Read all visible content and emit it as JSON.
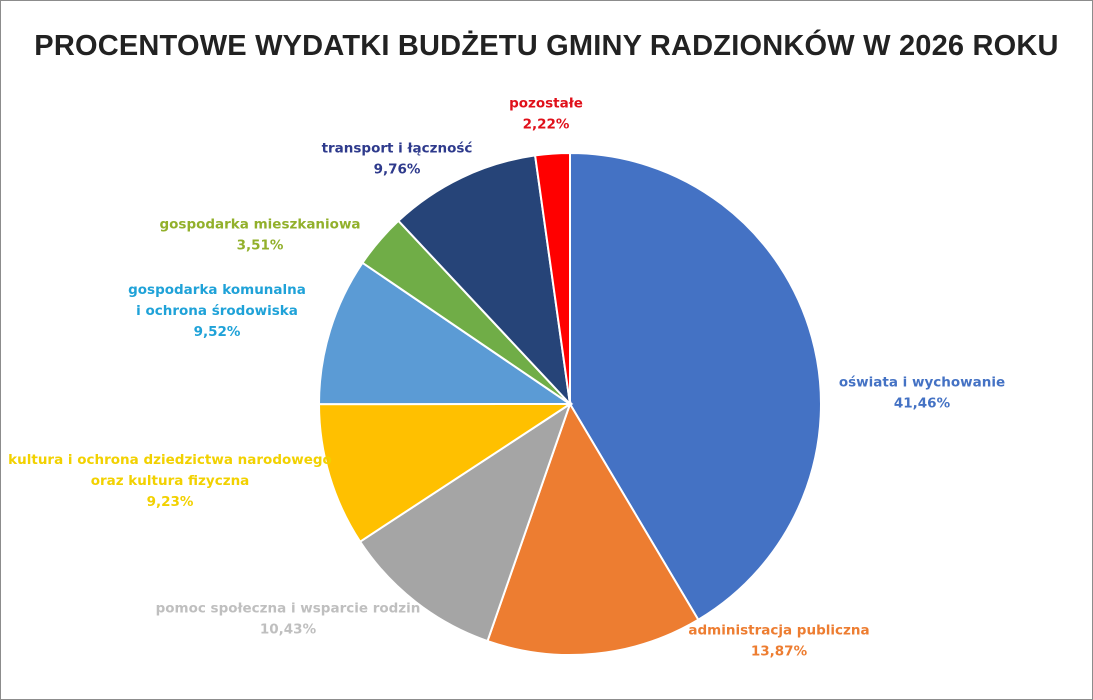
{
  "chart_data": {
    "type": "pie",
    "title": "PROCENTOWE WYDATKI BUDŻETU GMINY RADZIONKÓW W 2026 ROKU",
    "slices": [
      {
        "label_lines": [
          "oświata i wychowanie"
        ],
        "value": 41.46,
        "value_label": "41,46%",
        "color": "#4472C4",
        "label_color": "#4472C4"
      },
      {
        "label_lines": [
          "administracja publiczna"
        ],
        "value": 13.87,
        "value_label": "13,87%",
        "color": "#ED7D31",
        "label_color": "#ED7D31"
      },
      {
        "label_lines": [
          "pomoc społeczna i wsparcie rodzin"
        ],
        "value": 10.43,
        "value_label": "10,43%",
        "color": "#A5A5A5",
        "label_color": "#BFBFBF"
      },
      {
        "label_lines": [
          "kultura i ochrona dziedzictwa narodowego",
          "oraz kultura fizyczna"
        ],
        "value": 9.23,
        "value_label": "9,23%",
        "color": "#FFC000",
        "label_color": "#F2D100"
      },
      {
        "label_lines": [
          "gospodarka komunalna",
          "i ochrona środowiska"
        ],
        "value": 9.52,
        "value_label": "9,52%",
        "color": "#5B9BD5",
        "label_color": "#1FA2D8"
      },
      {
        "label_lines": [
          "gospodarka mieszkaniowa"
        ],
        "value": 3.51,
        "value_label": "3,51%",
        "color": "#70AD47",
        "label_color": "#92B02B"
      },
      {
        "label_lines": [
          "transport i łączność"
        ],
        "value": 9.76,
        "value_label": "9,76%",
        "color": "#264478",
        "label_color": "#2E3A8C"
      },
      {
        "label_lines": [
          "pozostałe"
        ],
        "value": 2.22,
        "value_label": "2,22%",
        "color": "#FF0000",
        "label_color": "#E0101A"
      }
    ],
    "start": "12 o'clock",
    "direction": "clockwise",
    "legend": "none (data labels outside slices)"
  }
}
